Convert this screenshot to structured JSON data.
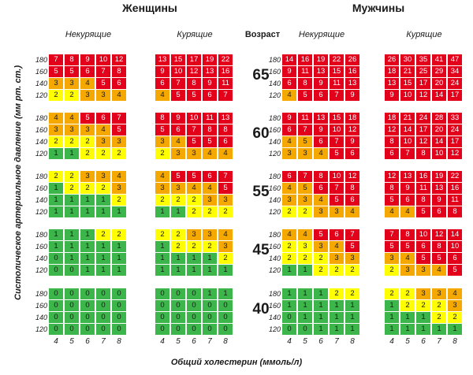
{
  "titles": {
    "women": "Женщины",
    "men": "Мужчины",
    "age": "Возраст",
    "nonsmoking": "Некурящие",
    "smoking": "Курящие",
    "ylabel": "Систолическое артериальное давление (мм рт. ст.)",
    "xlabel": "Общий холестерин (ммоль/л)"
  },
  "chart_data": {
    "type": "heatmap",
    "title": "",
    "xlabel": "Общий холестерин (ммоль/л)",
    "ylabel": "Систолическое артериальное давление (мм рт. ст.)",
    "cholesterol": [
      "4",
      "5",
      "6",
      "7",
      "8"
    ],
    "pressure": [
      "180",
      "160",
      "140",
      "120"
    ],
    "ages": [
      "65",
      "60",
      "55",
      "45",
      "40"
    ],
    "groups": [
      "women_nonsmoking",
      "women_smoking",
      "men_nonsmoking",
      "men_smoking"
    ],
    "colors": {
      "green": "#3cb54a",
      "yellow": "#ffff00",
      "orange": "#f5a800",
      "red": "#e3001b"
    },
    "values": {
      "65": {
        "women_nonsmoking": [
          [
            7,
            8,
            9,
            10,
            12
          ],
          [
            5,
            5,
            6,
            7,
            8
          ],
          [
            3,
            3,
            4,
            5,
            6
          ],
          [
            2,
            2,
            3,
            3,
            4
          ]
        ],
        "women_smoking": [
          [
            13,
            15,
            17,
            19,
            22
          ],
          [
            9,
            10,
            12,
            13,
            16
          ],
          [
            6,
            7,
            8,
            9,
            11
          ],
          [
            4,
            5,
            5,
            6,
            7
          ]
        ],
        "men_nonsmoking": [
          [
            14,
            16,
            19,
            22,
            26
          ],
          [
            9,
            11,
            13,
            15,
            16
          ],
          [
            6,
            8,
            9,
            11,
            13
          ],
          [
            4,
            5,
            6,
            7,
            9
          ]
        ],
        "men_smoking": [
          [
            26,
            30,
            35,
            41,
            47
          ],
          [
            18,
            21,
            25,
            29,
            34
          ],
          [
            13,
            15,
            17,
            20,
            24
          ],
          [
            9,
            10,
            12,
            14,
            17
          ]
        ]
      },
      "60": {
        "women_nonsmoking": [
          [
            4,
            4,
            5,
            6,
            7
          ],
          [
            3,
            3,
            3,
            4,
            5
          ],
          [
            2,
            2,
            2,
            3,
            3
          ],
          [
            1,
            1,
            2,
            2,
            2
          ]
        ],
        "women_smoking": [
          [
            8,
            9,
            10,
            11,
            13
          ],
          [
            5,
            6,
            7,
            8,
            8
          ],
          [
            3,
            4,
            5,
            5,
            6
          ],
          [
            2,
            3,
            3,
            4,
            4
          ]
        ],
        "men_nonsmoking": [
          [
            9,
            11,
            13,
            15,
            18
          ],
          [
            6,
            7,
            9,
            10,
            12
          ],
          [
            4,
            5,
            6,
            7,
            9
          ],
          [
            3,
            3,
            4,
            5,
            6
          ]
        ],
        "men_smoking": [
          [
            18,
            21,
            24,
            28,
            33
          ],
          [
            12,
            14,
            17,
            20,
            24
          ],
          [
            8,
            10,
            12,
            14,
            17
          ],
          [
            6,
            7,
            8,
            10,
            12
          ]
        ]
      },
      "55": {
        "women_nonsmoking": [
          [
            2,
            2,
            3,
            3,
            4
          ],
          [
            1,
            2,
            2,
            2,
            3
          ],
          [
            1,
            1,
            1,
            1,
            2
          ],
          [
            1,
            1,
            1,
            1,
            1
          ]
        ],
        "women_smoking": [
          [
            4,
            5,
            5,
            6,
            7
          ],
          [
            3,
            3,
            4,
            4,
            5
          ],
          [
            2,
            2,
            2,
            3,
            3
          ],
          [
            1,
            1,
            2,
            2,
            2
          ]
        ],
        "men_nonsmoking": [
          [
            6,
            7,
            8,
            10,
            12
          ],
          [
            4,
            5,
            6,
            7,
            8
          ],
          [
            3,
            3,
            4,
            5,
            6
          ],
          [
            2,
            2,
            3,
            3,
            4
          ]
        ],
        "men_smoking": [
          [
            12,
            13,
            16,
            19,
            22
          ],
          [
            8,
            9,
            11,
            13,
            16
          ],
          [
            5,
            6,
            8,
            9,
            11
          ],
          [
            4,
            4,
            5,
            6,
            8
          ]
        ]
      },
      "45": {
        "women_nonsmoking": [
          [
            1,
            1,
            1,
            2,
            2
          ],
          [
            1,
            1,
            1,
            1,
            1
          ],
          [
            0,
            1,
            1,
            1,
            1
          ],
          [
            0,
            0,
            1,
            1,
            1
          ]
        ],
        "women_smoking": [
          [
            2,
            2,
            3,
            3,
            4
          ],
          [
            1,
            2,
            2,
            2,
            3
          ],
          [
            1,
            1,
            1,
            1,
            2
          ],
          [
            1,
            1,
            1,
            1,
            1
          ]
        ],
        "men_nonsmoking": [
          [
            4,
            4,
            5,
            6,
            7
          ],
          [
            2,
            3,
            3,
            4,
            5
          ],
          [
            2,
            2,
            2,
            3,
            3
          ],
          [
            1,
            1,
            2,
            2,
            2
          ]
        ],
        "men_smoking": [
          [
            7,
            8,
            10,
            12,
            14
          ],
          [
            5,
            5,
            6,
            8,
            10
          ],
          [
            3,
            4,
            5,
            5,
            6
          ],
          [
            2,
            3,
            3,
            4,
            5
          ]
        ]
      },
      "40": {
        "women_nonsmoking": [
          [
            0,
            0,
            0,
            0,
            0
          ],
          [
            0,
            0,
            0,
            0,
            0
          ],
          [
            0,
            0,
            0,
            0,
            0
          ],
          [
            0,
            0,
            0,
            0,
            0
          ]
        ],
        "women_smoking": [
          [
            0,
            0,
            0,
            1,
            1
          ],
          [
            0,
            0,
            0,
            0,
            0
          ],
          [
            0,
            0,
            0,
            0,
            0
          ],
          [
            0,
            0,
            0,
            0,
            0
          ]
        ],
        "men_nonsmoking": [
          [
            1,
            1,
            1,
            2,
            2
          ],
          [
            1,
            1,
            1,
            1,
            1
          ],
          [
            0,
            1,
            1,
            1,
            1
          ],
          [
            0,
            0,
            1,
            1,
            1
          ]
        ],
        "men_smoking": [
          [
            2,
            2,
            3,
            3,
            4
          ],
          [
            1,
            2,
            2,
            2,
            3
          ],
          [
            1,
            1,
            1,
            2,
            2
          ],
          [
            1,
            1,
            1,
            1,
            1
          ]
        ]
      }
    },
    "color_grid": {
      "65": {
        "women_nonsmoking": [
          "RRRRR",
          "RRRRR",
          "OOORR",
          "YYOOO"
        ],
        "women_smoking": [
          "RRRRR",
          "RRRRR",
          "RRRRR",
          "ORRRR"
        ],
        "men_nonsmoking": [
          "RRRRR",
          "RRRRR",
          "RRRRR",
          "ORRRR"
        ],
        "men_smoking": [
          "RRRRR",
          "RRRRR",
          "RRRRR",
          "RRRRR"
        ]
      },
      "60": {
        "women_nonsmoking": [
          "OORRR",
          "OOOOR",
          "YYYOO",
          "GGYYY"
        ],
        "women_smoking": [
          "RRRRR",
          "RRRRR",
          "OORRR",
          "YOOOO"
        ],
        "men_nonsmoking": [
          "RRRRR",
          "RRRRR",
          "OORRR",
          "OOORR"
        ],
        "men_smoking": [
          "RRRRR",
          "RRRRR",
          "RRRRR",
          "RRRRR"
        ]
      },
      "55": {
        "women_nonsmoking": [
          "YYOOO",
          "GYYYO",
          "GGGGY",
          "GGGGG"
        ],
        "women_smoking": [
          "ORRRR",
          "OOOOR",
          "YYYOO",
          "GGYYY"
        ],
        "men_nonsmoking": [
          "RRRRR",
          "OORRR",
          "OOORR",
          "YYOOO"
        ],
        "men_smoking": [
          "RRRRR",
          "RRRRR",
          "RRRRR",
          "OORRR"
        ]
      },
      "45": {
        "women_nonsmoking": [
          "GGGYY",
          "GGGGG",
          "GGGGG",
          "GGGGG"
        ],
        "women_smoking": [
          "YYOOO",
          "GYYYO",
          "GGGGY",
          "GGGGG"
        ],
        "men_nonsmoking": [
          "OORRR",
          "YYOOR",
          "YYYOO",
          "GGYYY"
        ],
        "men_smoking": [
          "RRRRR",
          "RRRRR",
          "OORRR",
          "YOOOR"
        ]
      },
      "40": {
        "women_nonsmoking": [
          "GGGGG",
          "GGGGG",
          "GGGGG",
          "GGGGG"
        ],
        "women_smoking": [
          "GGGGG",
          "GGGGG",
          "GGGGG",
          "GGGGG"
        ],
        "men_nonsmoking": [
          "GGGYY",
          "GGGGG",
          "GGGGG",
          "GGGGG"
        ],
        "men_smoking": [
          "YYOOO",
          "GYYYO",
          "GGGYY",
          "GGGGG"
        ]
      }
    }
  }
}
